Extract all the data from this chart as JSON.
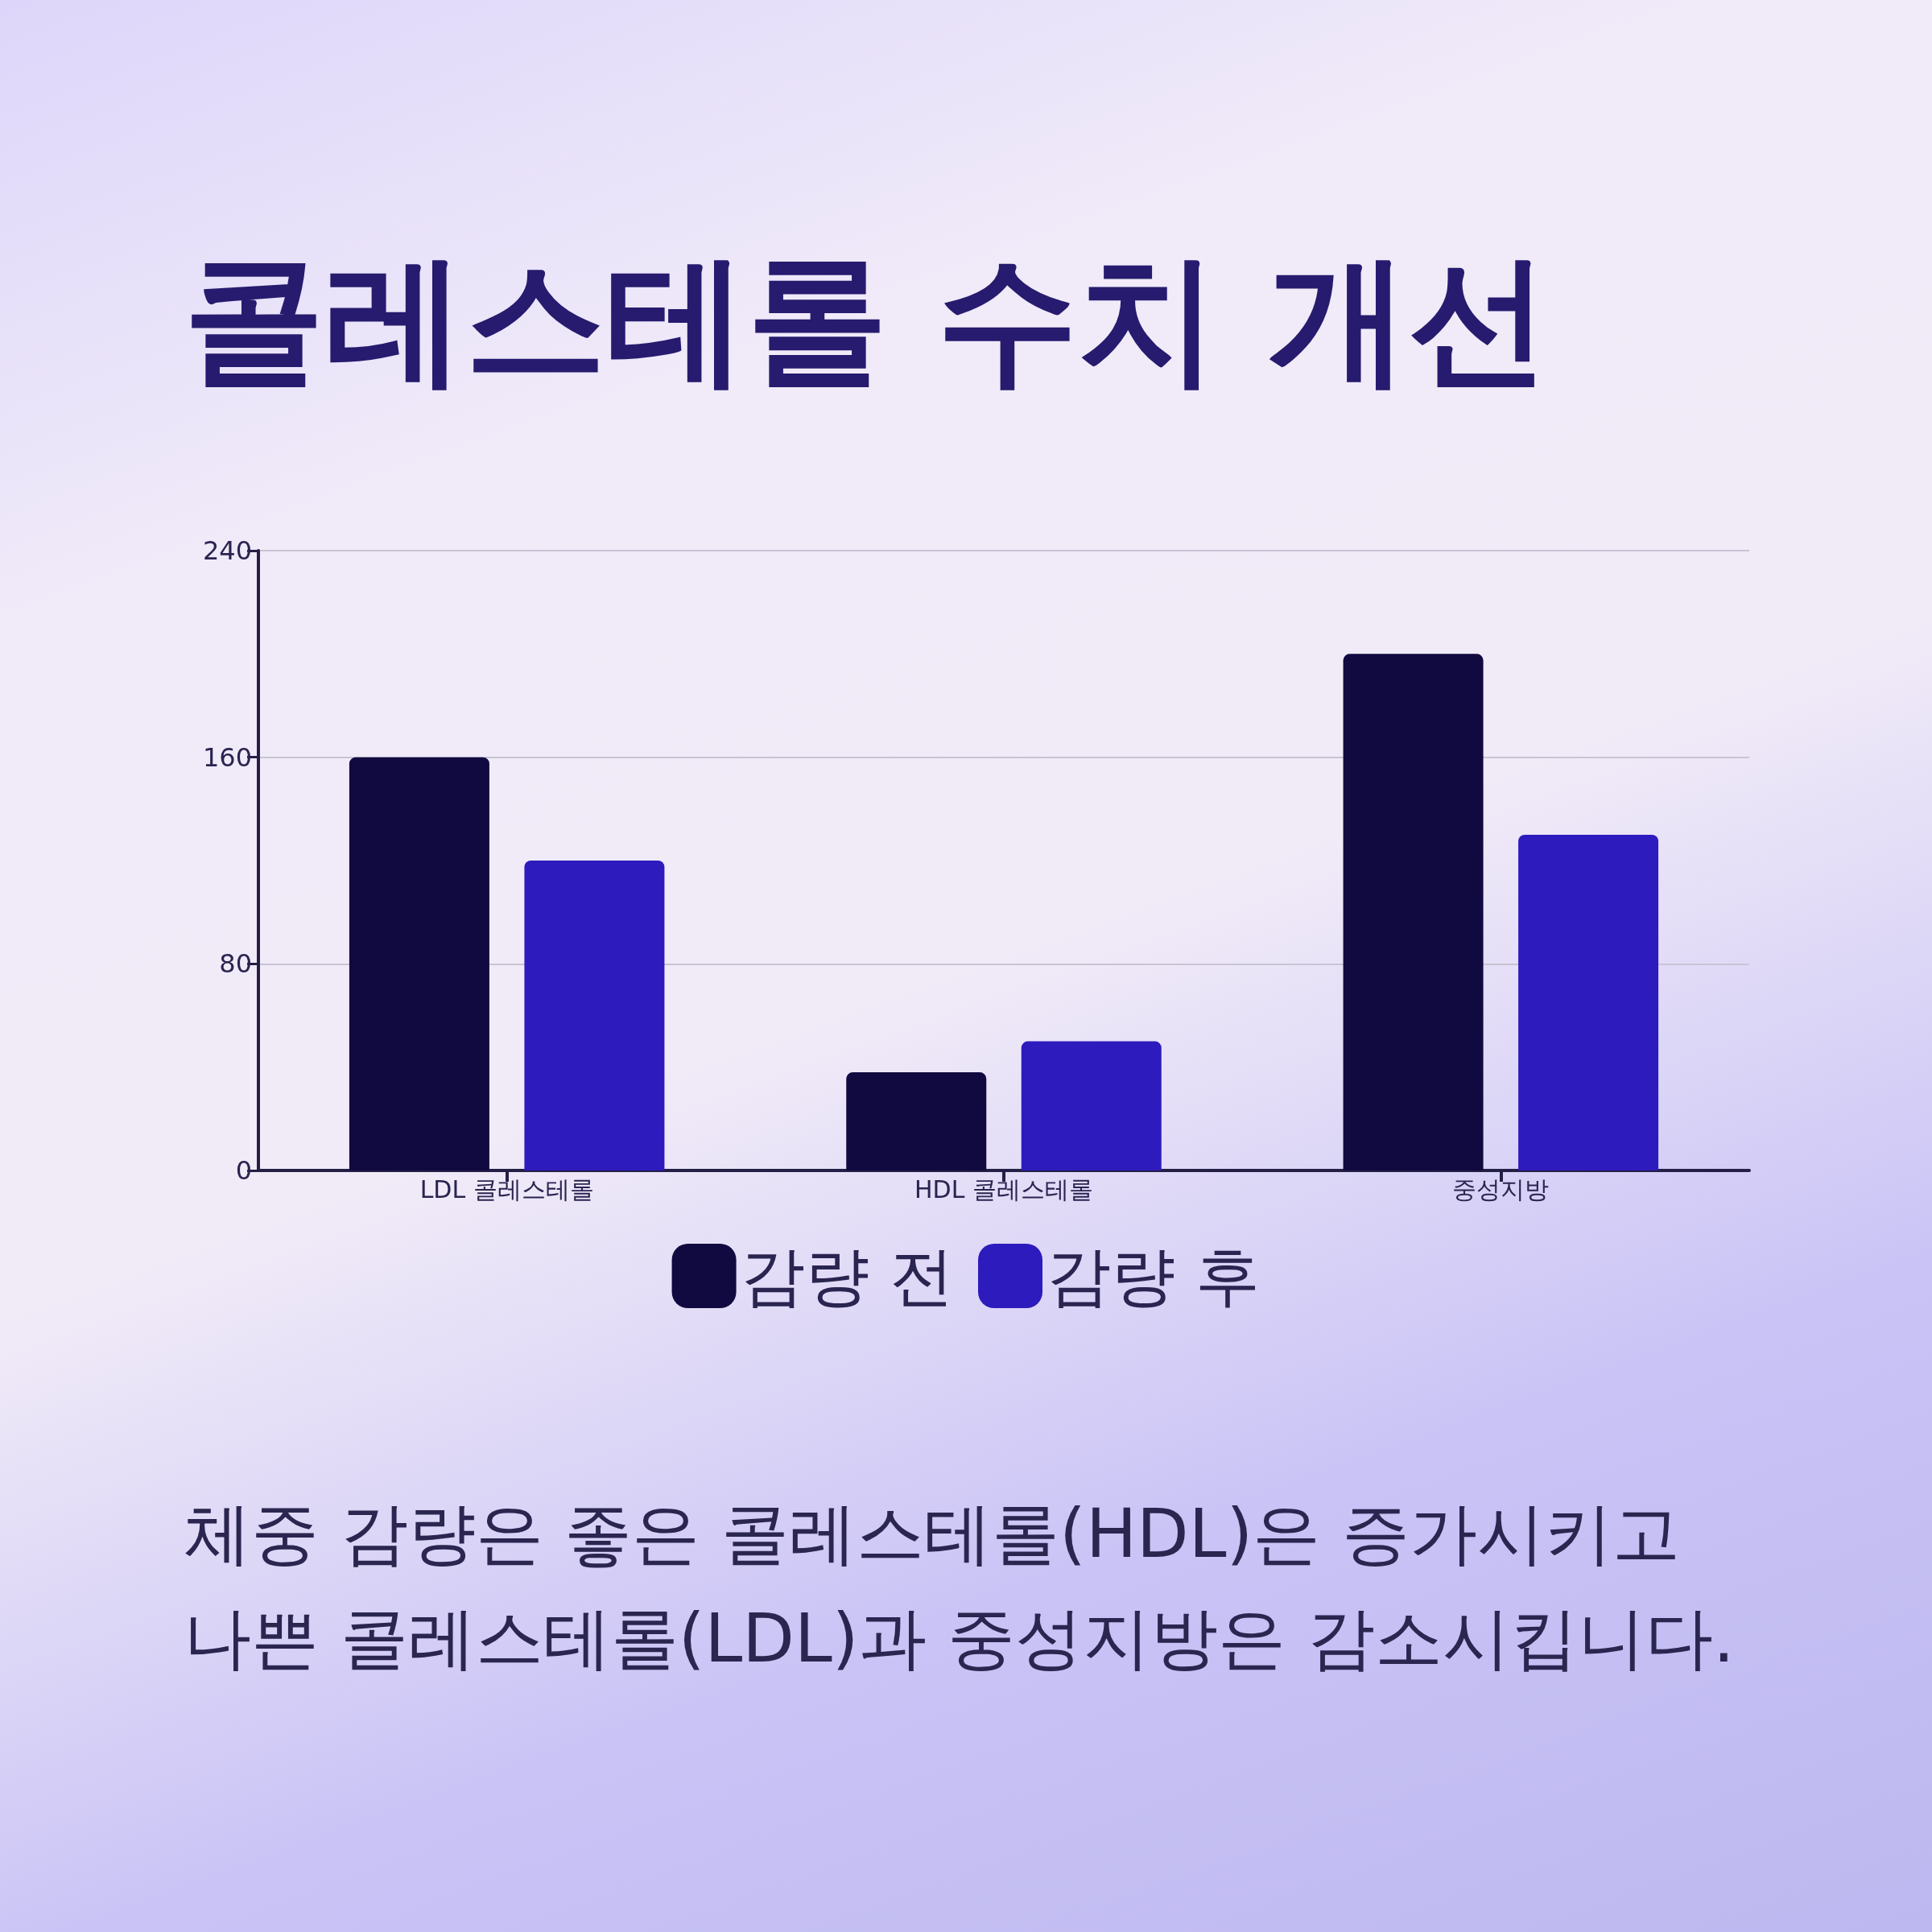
{
  "chart_data": {
    "type": "bar",
    "title": "콜레스테롤 수치 개선",
    "categories": [
      "LDL 콜레스테롤",
      "HDL 콜레스테롤",
      "중성지방"
    ],
    "series": [
      {
        "name": "감량 전",
        "color": "#110a40",
        "values": [
          160,
          38,
          200
        ]
      },
      {
        "name": "감량 후",
        "color": "#2d1bbd",
        "values": [
          120,
          50,
          130
        ]
      }
    ],
    "ylim": [
      0,
      240
    ],
    "yticks": [
      0,
      80,
      160,
      240
    ],
    "grid": "y",
    "legend": "bottom",
    "annotations": [
      "체중 감량은 좋은 콜레스테롤(HDL)은 증가시키고 나쁜 콜레스테롤(LDL)과 중성지방은 감소시킵니다."
    ]
  }
}
